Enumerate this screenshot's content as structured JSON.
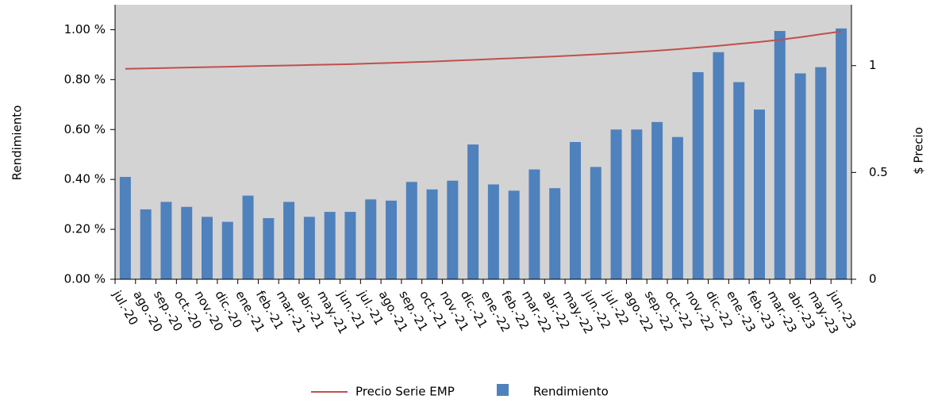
{
  "chart_data": {
    "type": "bar",
    "categories": [
      "jul.-20",
      "ago.-20",
      "sep.-20",
      "oct.-20",
      "nov.-20",
      "dic.-20",
      "ene.-21",
      "feb.-21",
      "mar.-21",
      "abr.-21",
      "may.-21",
      "jun.-21",
      "jul.-21",
      "ago.-21",
      "sep.-21",
      "oct.-21",
      "nov.-21",
      "dic.-21",
      "ene.-22",
      "feb.-22",
      "mar.-22",
      "abr.-22",
      "may.-22",
      "jun.-22",
      "jul.-22",
      "ago.-22",
      "sep.-22",
      "oct.-22",
      "nov.-22",
      "dic.-22",
      "ene.-23",
      "feb.-23",
      "mar.-23",
      "abr.-23",
      "may.-23",
      "jun.-23"
    ],
    "series": [
      {
        "name": "Precio Serie EMP",
        "type": "line",
        "axis": "y2",
        "color": "#c0504d",
        "values": [
          0.985,
          0.987,
          0.989,
          0.991,
          0.993,
          0.995,
          0.997,
          0.999,
          1.001,
          1.003,
          1.005,
          1.007,
          1.01,
          1.013,
          1.016,
          1.019,
          1.023,
          1.027,
          1.031,
          1.035,
          1.039,
          1.043,
          1.048,
          1.053,
          1.058,
          1.064,
          1.07,
          1.077,
          1.085,
          1.093,
          1.102,
          1.111,
          1.121,
          1.133,
          1.147,
          1.16
        ]
      },
      {
        "name": "Rendimiento",
        "type": "bar",
        "axis": "y",
        "color": "#4f81bd",
        "values": [
          0.41,
          0.28,
          0.31,
          0.29,
          0.25,
          0.23,
          0.335,
          0.245,
          0.31,
          0.25,
          0.27,
          0.27,
          0.32,
          0.315,
          0.39,
          0.36,
          0.395,
          0.54,
          0.38,
          0.355,
          0.44,
          0.365,
          0.55,
          0.45,
          0.6,
          0.6,
          0.63,
          0.57,
          0.83,
          0.91,
          0.79,
          0.68,
          0.995,
          0.825,
          0.85,
          1.005
        ]
      }
    ],
    "y_label": "Rendimiento",
    "y2_label": "$ Precio",
    "ylim": [
      0,
      1.1
    ],
    "yticks": [
      {
        "value": 0,
        "label": "0.00 %"
      },
      {
        "value": 0.2,
        "label": "0.20 %"
      },
      {
        "value": 0.4,
        "label": "0.40 %"
      },
      {
        "value": 0.6,
        "label": "0.60 %"
      },
      {
        "value": 0.8,
        "label": "0.80 %"
      },
      {
        "value": 1.0,
        "label": "1.00 %"
      }
    ],
    "y2lim": [
      0,
      1.285
    ],
    "y2ticks": [
      0,
      0.5,
      1
    ],
    "plot_background": "#d3d3d3"
  }
}
